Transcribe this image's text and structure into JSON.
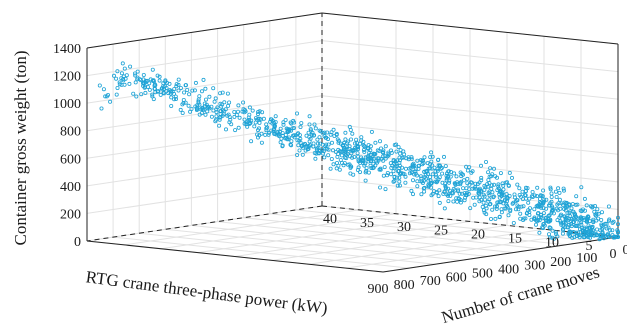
{
  "chart_data": {
    "type": "scatter",
    "projection": "3d",
    "zlabel": "Container gross weight (ton)",
    "xlabel": "RTG crane three-phase power (kW)",
    "ylabel": "Number of crane moves",
    "x_ticks": [
      "900",
      "800",
      "700",
      "600",
      "500",
      "400",
      "300",
      "200",
      "100",
      "0"
    ],
    "y_ticks": [
      "40",
      "35",
      "30",
      "25",
      "20",
      "15",
      "10",
      "5",
      "0"
    ],
    "z_ticks": [
      "0",
      "200",
      "400",
      "600",
      "800",
      "1000",
      "1200",
      "1400"
    ],
    "xlim": [
      0,
      900
    ],
    "ylim": [
      0,
      40
    ],
    "zlim": [
      0,
      1400
    ],
    "grid": true,
    "marker": "open-circle",
    "color": "#1fa3d6",
    "point_count": 1300,
    "points_sample": [
      {
        "x": 900,
        "y": 40,
        "z": 880
      },
      {
        "x": 820,
        "y": 38,
        "z": 1190
      },
      {
        "x": 760,
        "y": 37,
        "z": 1130
      },
      {
        "x": 700,
        "y": 35,
        "z": 1050
      },
      {
        "x": 620,
        "y": 33,
        "z": 940
      },
      {
        "x": 540,
        "y": 30,
        "z": 820
      },
      {
        "x": 470,
        "y": 28,
        "z": 740
      },
      {
        "x": 420,
        "y": 26,
        "z": 660
      },
      {
        "x": 360,
        "y": 23,
        "z": 580
      },
      {
        "x": 300,
        "y": 21,
        "z": 520
      },
      {
        "x": 240,
        "y": 18,
        "z": 430
      },
      {
        "x": 180,
        "y": 15,
        "z": 340
      },
      {
        "x": 130,
        "y": 11,
        "z": 260
      },
      {
        "x": 80,
        "y": 7,
        "z": 170
      },
      {
        "x": 40,
        "y": 4,
        "z": 90
      },
      {
        "x": 10,
        "y": 1,
        "z": 20
      }
    ]
  }
}
